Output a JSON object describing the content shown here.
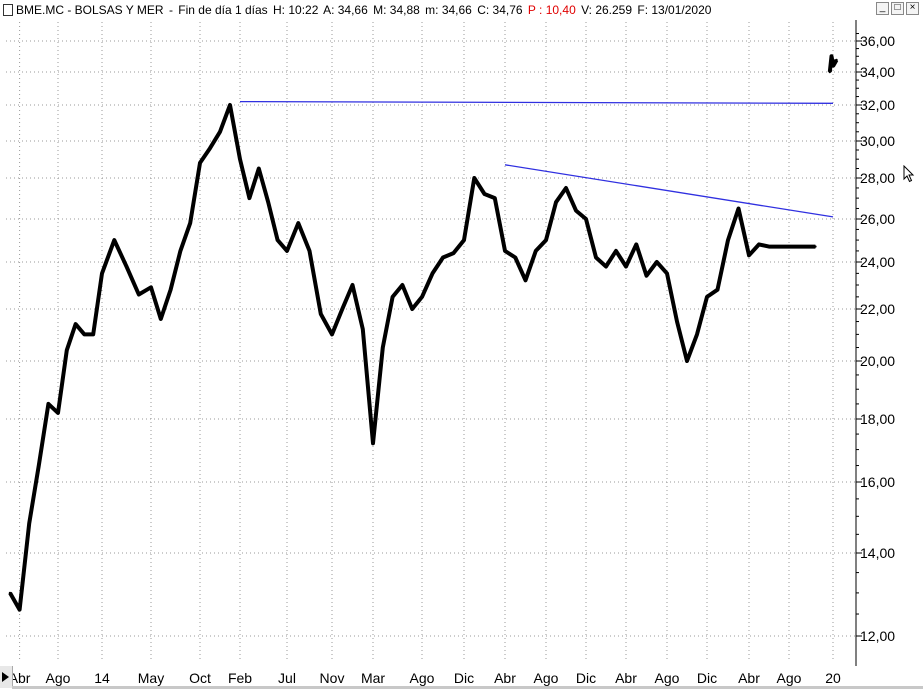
{
  "header": {
    "symbol": "BME.MC - BOLSAS Y MER",
    "period": "Fin de día 1 días",
    "H": "H: 10:22",
    "A": "A: 34,66",
    "M": "M: 34,88",
    "m": "m: 34,66",
    "C": "C: 34,76",
    "P": "P : 10,40",
    "V": "V: 26.259",
    "F": "F: 13/01/2020",
    "colors": {
      "price_change": "#e00000"
    }
  },
  "window_buttons": {
    "minimize": "_",
    "maximize": "□",
    "close": "×"
  },
  "chart_data": {
    "type": "line",
    "scale": "log",
    "grid": true,
    "ylim": [
      11.5,
      37.2
    ],
    "y_ticks": [
      "36,00",
      "34,00",
      "32,00",
      "30,00",
      "28,00",
      "26,00",
      "24,00",
      "22,00",
      "20,00",
      "18,00",
      "16,00",
      "14,00",
      "12,00"
    ],
    "y_tick_values": [
      36,
      34,
      32,
      30,
      28,
      26,
      24,
      22,
      20,
      18,
      16,
      14,
      12
    ],
    "x_ticks": [
      "Abr",
      "Ago",
      "14",
      "May",
      "Oct",
      "Feb",
      "Jul",
      "Nov",
      "Mar",
      "Ago",
      "Dic",
      "Abr",
      "Ago",
      "Dic",
      "Abr",
      "Ago",
      "Dic",
      "Abr",
      "Ago",
      "20"
    ],
    "x_tick_dates": [
      "2013-04",
      "2013-08",
      "2014-01",
      "2014-05",
      "2014-10",
      "2015-02",
      "2015-07",
      "2015-11",
      "2016-03",
      "2016-08",
      "2016-12",
      "2017-04",
      "2017-08",
      "2017-12",
      "2018-04",
      "2018-08",
      "2018-12",
      "2019-04",
      "2019-08",
      "2020-01"
    ],
    "series": [
      {
        "color": "#000000",
        "x": [
          "2013-03",
          "2013-04",
          "2013-05",
          "2013-06",
          "2013-07",
          "2013-08",
          "2013-09",
          "2013-10",
          "2013-11",
          "2013-12",
          "2014-01",
          "2014-02",
          "2014-03",
          "2014-04",
          "2014-05",
          "2014-06",
          "2014-07",
          "2014-08",
          "2014-09",
          "2014-10",
          "2014-11",
          "2014-12",
          "2015-01",
          "2015-02",
          "2015-03",
          "2015-04",
          "2015-05",
          "2015-06",
          "2015-07",
          "2015-08",
          "2015-09",
          "2015-10",
          "2015-11",
          "2015-12",
          "2016-01",
          "2016-02",
          "2016-03",
          "2016-04",
          "2016-05",
          "2016-06",
          "2016-07",
          "2016-08",
          "2016-09",
          "2016-10",
          "2016-11",
          "2016-12",
          "2017-01",
          "2017-02",
          "2017-03",
          "2017-04",
          "2017-05",
          "2017-06",
          "2017-07",
          "2017-08",
          "2017-09",
          "2017-10",
          "2017-11",
          "2017-12",
          "2018-01",
          "2018-02",
          "2018-03",
          "2018-04",
          "2018-05",
          "2018-06",
          "2018-07",
          "2018-08",
          "2018-09",
          "2018-10",
          "2018-11",
          "2018-12",
          "2019-01",
          "2019-02",
          "2019-03",
          "2019-04",
          "2019-05",
          "2019-06",
          "2019-07",
          "2019-08",
          "2019-09",
          "2019-10",
          "2019-11"
        ],
        "y": [
          13.0,
          12.6,
          14.8,
          16.5,
          18.5,
          18.2,
          20.4,
          21.4,
          21.0,
          21.0,
          23.5,
          25.0,
          23.8,
          22.6,
          22.9,
          21.6,
          22.8,
          24.5,
          25.8,
          28.8,
          29.6,
          30.5,
          32.0,
          29.0,
          27.0,
          28.5,
          26.8,
          25.0,
          24.5,
          25.8,
          24.5,
          21.8,
          21.0,
          22.0,
          23.0,
          21.2,
          17.2,
          20.5,
          22.5,
          23.0,
          22.0,
          22.5,
          23.5,
          24.2,
          24.4,
          25.0,
          28.0,
          27.2,
          27.0,
          24.5,
          24.2,
          23.2,
          24.5,
          25.0,
          26.8,
          27.5,
          26.4,
          26.0,
          24.2,
          23.8,
          24.5,
          23.8,
          24.8,
          23.4,
          24.0,
          23.5,
          21.5,
          20.0,
          21.0,
          22.5,
          22.8,
          25.0,
          26.5,
          24.3,
          24.8,
          24.7,
          24.7,
          24.7,
          24.7,
          24.7,
          24.7
        ]
      },
      {
        "color": "#000000",
        "x": [
          "2019-12-20",
          "2019-12-26",
          "2020-01-02",
          "2020-01-08",
          "2020-01-13"
        ],
        "y": [
          34.0,
          35.0,
          34.4,
          34.6,
          34.76
        ]
      }
    ],
    "trendlines": [
      {
        "color": "#3030e0",
        "from": [
          "2015-02",
          32.2
        ],
        "to": [
          "2020-01",
          32.1
        ]
      },
      {
        "color": "#3030e0",
        "from": [
          "2017-04",
          28.7
        ],
        "to": [
          "2020-01",
          26.1
        ]
      }
    ]
  }
}
